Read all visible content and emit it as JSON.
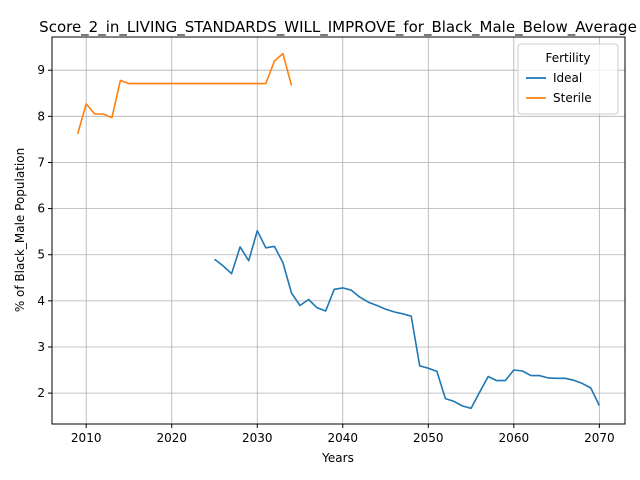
{
  "chart_data": {
    "type": "line",
    "title": "Score_2_in_LIVING_STANDARDS_WILL_IMPROVE_for_Black_Male_Below_Average",
    "xlabel": "Years",
    "ylabel": "% of Black_Male Population",
    "xlim": [
      2006,
      2073
    ],
    "ylim": [
      1.33,
      9.72
    ],
    "xticks": [
      2010,
      2020,
      2030,
      2040,
      2050,
      2060,
      2070
    ],
    "yticks": [
      2,
      3,
      4,
      5,
      6,
      7,
      8,
      9
    ],
    "grid": true,
    "legend": {
      "title": "Fertility",
      "position": "top-right"
    },
    "series": [
      {
        "name": "Ideal",
        "color": "#1f77b4",
        "x": [
          2025,
          2026,
          2027,
          2028,
          2029,
          2030,
          2031,
          2032,
          2033,
          2034,
          2035,
          2036,
          2037,
          2038,
          2039,
          2040,
          2041,
          2042,
          2043,
          2044,
          2045,
          2046,
          2047,
          2048,
          2049,
          2050,
          2051,
          2052,
          2053,
          2054,
          2055,
          2056,
          2057,
          2058,
          2059,
          2060,
          2061,
          2062,
          2063,
          2064,
          2065,
          2066,
          2067,
          2068,
          2069,
          2070
        ],
        "y": [
          4.9,
          4.76,
          4.59,
          5.17,
          4.87,
          5.52,
          5.15,
          5.18,
          4.83,
          4.17,
          3.9,
          4.03,
          3.85,
          3.78,
          4.25,
          4.28,
          4.23,
          4.08,
          3.97,
          3.9,
          3.82,
          3.76,
          3.72,
          3.67,
          2.59,
          2.54,
          2.47,
          1.88,
          1.82,
          1.72,
          1.67,
          2.02,
          2.36,
          2.27,
          2.27,
          2.5,
          2.48,
          2.38,
          2.38,
          2.33,
          2.32,
          2.32,
          2.28,
          2.21,
          2.11,
          1.73
        ]
      },
      {
        "name": "Sterile",
        "color": "#ff7f0e",
        "x": [
          2009,
          2010,
          2011,
          2012,
          2013,
          2014,
          2015,
          2016,
          2017,
          2018,
          2019,
          2020,
          2021,
          2022,
          2023,
          2024,
          2025,
          2026,
          2027,
          2028,
          2029,
          2030,
          2031,
          2032,
          2033,
          2034
        ],
        "y": [
          7.62,
          8.27,
          8.05,
          8.05,
          7.97,
          8.78,
          8.71,
          8.71,
          8.71,
          8.71,
          8.71,
          8.71,
          8.71,
          8.71,
          8.71,
          8.71,
          8.71,
          8.71,
          8.71,
          8.71,
          8.71,
          8.71,
          8.71,
          9.2,
          9.36,
          8.67
        ]
      }
    ]
  }
}
